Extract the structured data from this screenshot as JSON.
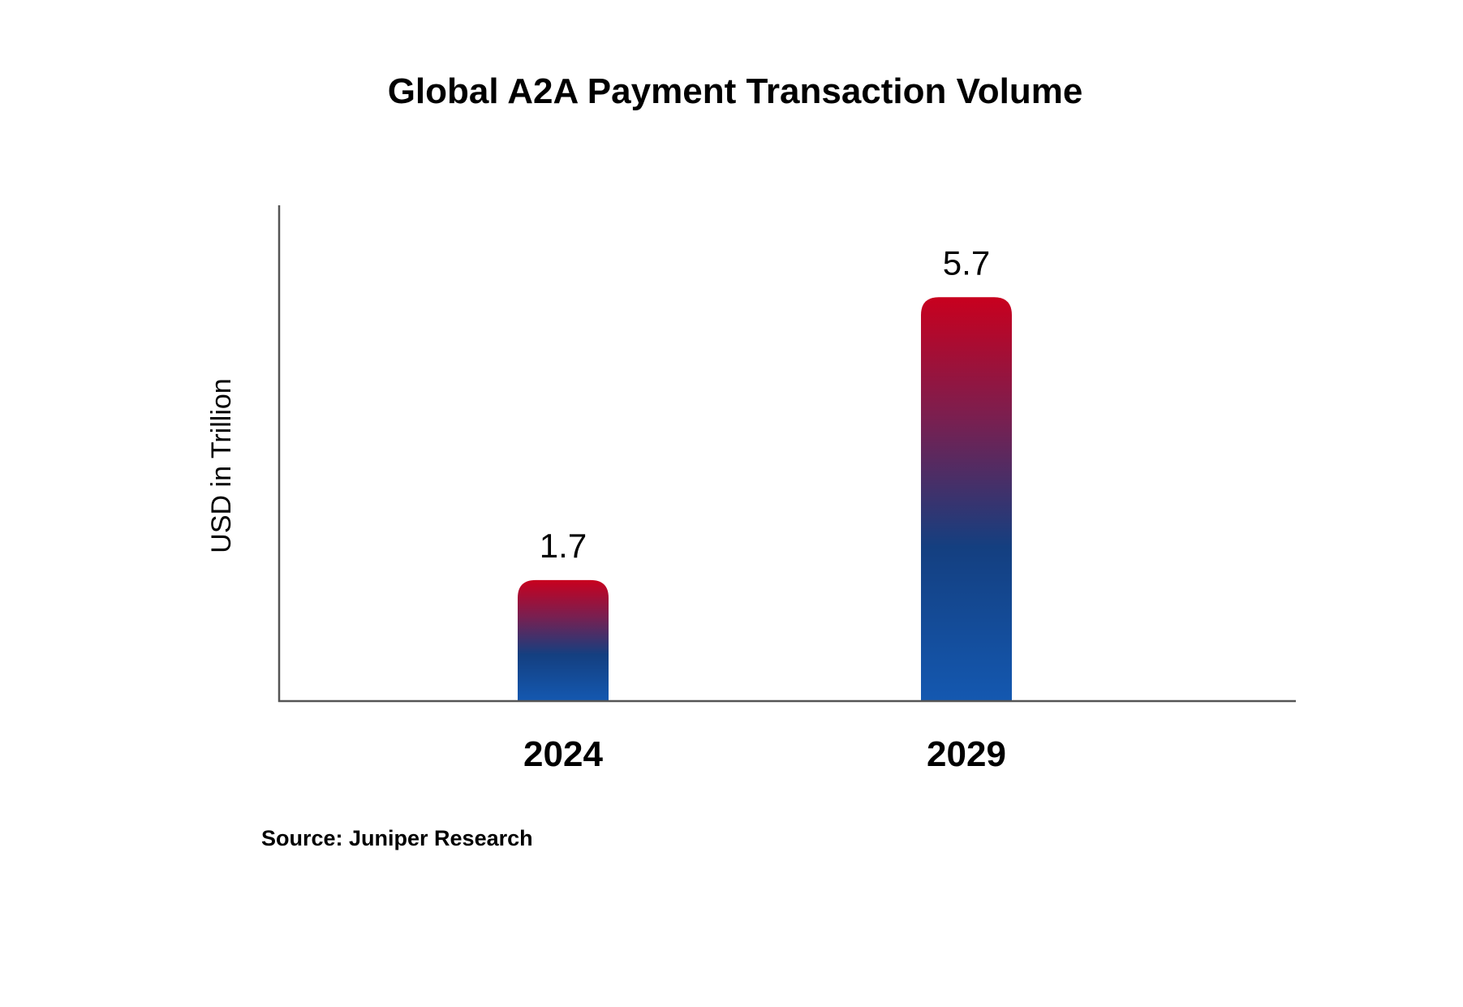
{
  "chart_data": {
    "type": "bar",
    "title": "Global A2A Payment Transaction Volume",
    "xlabel": "",
    "ylabel": "USD in Trillion",
    "categories": [
      "2024",
      "2029"
    ],
    "values": [
      1.7,
      5.7
    ],
    "data_labels": [
      "1.7",
      "5.7"
    ],
    "ylim": [
      0,
      7.0
    ],
    "grid": false,
    "legend": "none",
    "colors": {
      "bar_top": "#c8001e",
      "bar_mid": "#143f80",
      "bar_bottom": "#1458b0",
      "axis": "#555555"
    }
  },
  "source": "Source: Juniper Research"
}
